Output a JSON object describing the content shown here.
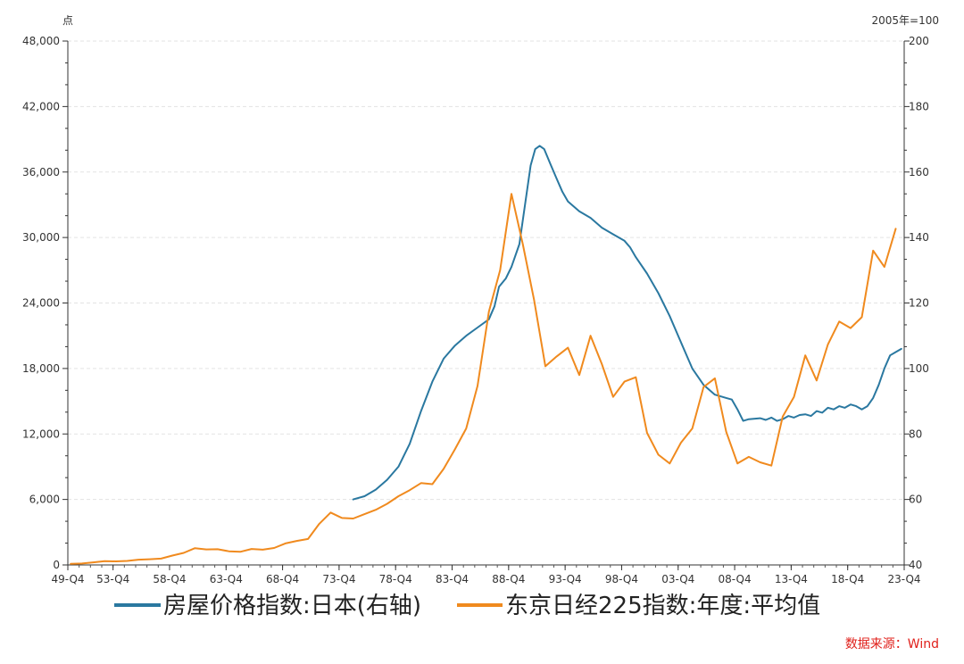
{
  "source": "数据来源：Wind",
  "chart_data": {
    "type": "line",
    "left_unit": "点",
    "right_unit": "2005年=100",
    "left_axis": {
      "min": 0,
      "max": 48000,
      "ticks": [
        "0",
        "6,000",
        "12,000",
        "18,000",
        "24,000",
        "30,000",
        "36,000",
        "42,000",
        "48,000"
      ]
    },
    "right_axis": {
      "min": 40,
      "max": 200,
      "ticks": [
        "40",
        "60",
        "80",
        "100",
        "120",
        "140",
        "160",
        "180",
        "200"
      ]
    },
    "x_range": [
      1949.75,
      2023.75
    ],
    "x_tick_labels": [
      "49-Q4",
      "53-Q4",
      "58-Q4",
      "63-Q4",
      "68-Q4",
      "73-Q4",
      "78-Q4",
      "83-Q4",
      "88-Q4",
      "93-Q4",
      "98-Q4",
      "03-Q4",
      "08-Q4",
      "13-Q4",
      "18-Q4",
      "23-Q4"
    ],
    "x_tick_values": [
      1949.75,
      1953.75,
      1958.75,
      1963.75,
      1968.75,
      1973.75,
      1978.75,
      1983.75,
      1988.75,
      1993.75,
      1998.75,
      2003.75,
      2008.75,
      2013.75,
      2018.75,
      2023.75
    ],
    "grid": true,
    "legend_position": "bottom",
    "series": [
      {
        "name": "房屋价格指数:日本(右轴)",
        "axis": "right",
        "color": "#2a78a0",
        "points": [
          [
            1975.0,
            60
          ],
          [
            1976.0,
            61
          ],
          [
            1977.0,
            63
          ],
          [
            1978.0,
            66
          ],
          [
            1979.0,
            70
          ],
          [
            1980.0,
            77
          ],
          [
            1981.0,
            87
          ],
          [
            1982.0,
            96
          ],
          [
            1983.0,
            103
          ],
          [
            1984.0,
            107
          ],
          [
            1985.0,
            110
          ],
          [
            1986.0,
            112.5
          ],
          [
            1987.0,
            115
          ],
          [
            1987.5,
            119
          ],
          [
            1987.9,
            125
          ],
          [
            1988.5,
            127.5
          ],
          [
            1989.0,
            131
          ],
          [
            1989.7,
            138
          ],
          [
            1990.2,
            150
          ],
          [
            1990.7,
            162
          ],
          [
            1991.1,
            167
          ],
          [
            1991.5,
            168
          ],
          [
            1991.9,
            167
          ],
          [
            1992.5,
            162
          ],
          [
            1993.0,
            158
          ],
          [
            1993.5,
            154
          ],
          [
            1994.0,
            151
          ],
          [
            1995.0,
            148
          ],
          [
            1996.0,
            146
          ],
          [
            1997.0,
            143
          ],
          [
            1998.0,
            141
          ],
          [
            1999.0,
            139
          ],
          [
            1999.5,
            137
          ],
          [
            2000.0,
            134
          ],
          [
            2001.0,
            129
          ],
          [
            2002.0,
            123
          ],
          [
            2003.0,
            116
          ],
          [
            2004.0,
            108
          ],
          [
            2005.0,
            100
          ],
          [
            2006.0,
            95
          ],
          [
            2007.0,
            92
          ],
          [
            2008.0,
            91
          ],
          [
            2008.5,
            90.5
          ],
          [
            2009.0,
            87.5
          ],
          [
            2009.5,
            84
          ],
          [
            2010.0,
            84.5
          ],
          [
            2011.0,
            84.8
          ],
          [
            2011.5,
            84.3
          ],
          [
            2012.0,
            85
          ],
          [
            2012.5,
            84
          ],
          [
            2013.0,
            84.5
          ],
          [
            2013.5,
            85.5
          ],
          [
            2014.0,
            85
          ],
          [
            2014.5,
            85.8
          ],
          [
            2015.0,
            86
          ],
          [
            2015.5,
            85.5
          ],
          [
            2016.0,
            87
          ],
          [
            2016.5,
            86.5
          ],
          [
            2017.0,
            88
          ],
          [
            2017.5,
            87.5
          ],
          [
            2018.0,
            88.5
          ],
          [
            2018.5,
            88
          ],
          [
            2019.0,
            89
          ],
          [
            2019.5,
            88.5
          ],
          [
            2020.0,
            87.5
          ],
          [
            2020.5,
            88.5
          ],
          [
            2021.0,
            91
          ],
          [
            2021.5,
            95
          ],
          [
            2022.0,
            100
          ],
          [
            2022.5,
            104
          ],
          [
            2023.0,
            105
          ],
          [
            2023.5,
            106
          ]
        ]
      },
      {
        "name": "东京日经225指数:年度:平均值",
        "axis": "left",
        "color": "#f08a1e",
        "points": [
          [
            1950,
            110
          ],
          [
            1951,
            130
          ],
          [
            1952,
            240
          ],
          [
            1953,
            350
          ],
          [
            1954,
            330
          ],
          [
            1955,
            370
          ],
          [
            1956,
            480
          ],
          [
            1957,
            520
          ],
          [
            1958,
            580
          ],
          [
            1959,
            860
          ],
          [
            1960,
            1100
          ],
          [
            1961,
            1540
          ],
          [
            1962,
            1420
          ],
          [
            1963,
            1440
          ],
          [
            1964,
            1250
          ],
          [
            1965,
            1200
          ],
          [
            1966,
            1460
          ],
          [
            1967,
            1400
          ],
          [
            1968,
            1550
          ],
          [
            1969,
            1970
          ],
          [
            1970,
            2200
          ],
          [
            1971,
            2380
          ],
          [
            1972,
            3770
          ],
          [
            1973,
            4800
          ],
          [
            1974,
            4300
          ],
          [
            1975,
            4250
          ],
          [
            1976,
            4650
          ],
          [
            1977,
            5050
          ],
          [
            1978,
            5600
          ],
          [
            1979,
            6300
          ],
          [
            1980,
            6850
          ],
          [
            1981,
            7500
          ],
          [
            1982,
            7400
          ],
          [
            1983,
            8800
          ],
          [
            1984,
            10600
          ],
          [
            1985,
            12500
          ],
          [
            1986,
            16400
          ],
          [
            1987,
            23200
          ],
          [
            1988,
            27000
          ],
          [
            1989,
            34000
          ],
          [
            1990,
            29400
          ],
          [
            1991,
            24300
          ],
          [
            1992,
            18200
          ],
          [
            1993,
            19100
          ],
          [
            1994,
            19900
          ],
          [
            1995,
            17400
          ],
          [
            1996,
            21000
          ],
          [
            1997,
            18400
          ],
          [
            1998,
            15400
          ],
          [
            1999,
            16800
          ],
          [
            2000,
            17200
          ],
          [
            2001,
            12100
          ],
          [
            2002,
            10100
          ],
          [
            2003,
            9300
          ],
          [
            2004,
            11200
          ],
          [
            2005,
            12500
          ],
          [
            2006,
            16300
          ],
          [
            2007,
            17100
          ],
          [
            2008,
            12200
          ],
          [
            2009,
            9300
          ],
          [
            2010,
            9900
          ],
          [
            2011,
            9400
          ],
          [
            2012,
            9100
          ],
          [
            2013,
            13600
          ],
          [
            2014,
            15400
          ],
          [
            2015,
            19200
          ],
          [
            2016,
            16900
          ],
          [
            2017,
            20200
          ],
          [
            2018,
            22300
          ],
          [
            2019,
            21700
          ],
          [
            2020,
            22700
          ],
          [
            2021,
            28800
          ],
          [
            2022,
            27300
          ],
          [
            2023,
            30800
          ]
        ]
      }
    ]
  }
}
